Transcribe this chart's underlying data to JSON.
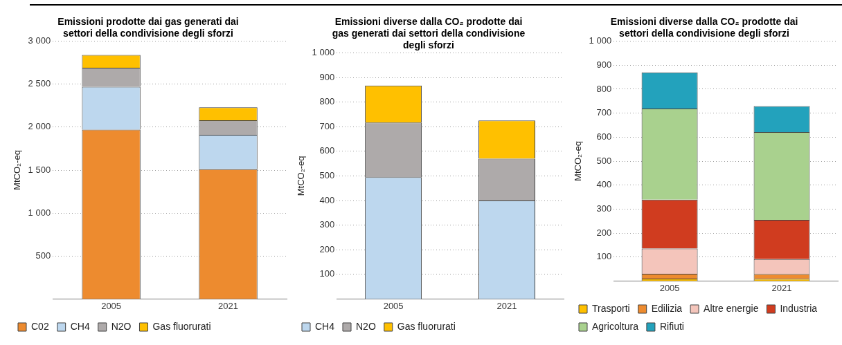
{
  "chart_data": [
    {
      "type": "bar",
      "stacked": true,
      "title": "Emissioni prodotte dai gas generati dai settori della condivisione degli sforzi",
      "ylabel": "MtCO₂-eq",
      "categories": [
        "2005",
        "2021"
      ],
      "series": [
        {
          "name": "C02",
          "color": "#ed8b2f",
          "values": [
            1970,
            1510
          ]
        },
        {
          "name": "CH4",
          "color": "#bdd7ee",
          "values": [
            500,
            400
          ]
        },
        {
          "name": "N2O",
          "color": "#aeaaaa",
          "values": [
            220,
            170
          ]
        },
        {
          "name": "Gas fluorurati",
          "color": "#ffc000",
          "values": [
            150,
            150
          ]
        }
      ],
      "ylim": [
        0,
        3000
      ],
      "yticks": [
        {
          "value": 500,
          "label": "500"
        },
        {
          "value": 1000,
          "label": "1 000"
        },
        {
          "value": 1500,
          "label": "1 500"
        },
        {
          "value": 2000,
          "label": "2 000"
        },
        {
          "value": 2500,
          "label": "2 500"
        },
        {
          "value": 3000,
          "label": "3 000"
        }
      ],
      "grid": "y",
      "legend": "bottom"
    },
    {
      "type": "bar",
      "stacked": true,
      "title": "Emissioni diverse dalla CO₂ prodotte dai gas generati dai settori della condivisione degli sforzi",
      "ylabel": "MtCO₂-eq",
      "categories": [
        "2005",
        "2021"
      ],
      "series": [
        {
          "name": "CH4",
          "color": "#bdd7ee",
          "values": [
            495,
            400
          ]
        },
        {
          "name": "N2O",
          "color": "#aeaaaa",
          "values": [
            222,
            170
          ]
        },
        {
          "name": "Gas fluorurati",
          "color": "#ffc000",
          "values": [
            150,
            155
          ]
        }
      ],
      "ylim": [
        0,
        1000
      ],
      "yticks": [
        100,
        200,
        300,
        400,
        500,
        600,
        700,
        800,
        900,
        {
          "value": 1000,
          "label": "1 000"
        }
      ],
      "grid": "y",
      "legend": "bottom"
    },
    {
      "type": "bar",
      "stacked": true,
      "title": "Emissioni diverse dalla CO₂ prodotte dai settori della condivisione degli sforzi",
      "ylabel": "MtCO₂-eq",
      "categories": [
        "2005",
        "2021"
      ],
      "series": [
        {
          "name": "Trasporti",
          "color": "#ffc000",
          "values": [
            10,
            9
          ]
        },
        {
          "name": "Edilizia",
          "color": "#ed8b2f",
          "values": [
            20,
            20
          ]
        },
        {
          "name": "Altre energie",
          "color": "#f4c5bb",
          "values": [
            105,
            62
          ]
        },
        {
          "name": "Industria",
          "color": "#d03c1f",
          "values": [
            204,
            164
          ]
        },
        {
          "name": "Agricoltura",
          "color": "#a9d18e",
          "values": [
            380,
            366
          ]
        },
        {
          "name": "Rifiuti",
          "color": "#23a2bc",
          "values": [
            151,
            108
          ]
        }
      ],
      "ylim": [
        0,
        1000
      ],
      "yticks": [
        100,
        200,
        300,
        400,
        500,
        600,
        700,
        800,
        900,
        {
          "value": 1000,
          "label": "1 000"
        }
      ],
      "grid": "y",
      "legend": "bottom"
    }
  ]
}
